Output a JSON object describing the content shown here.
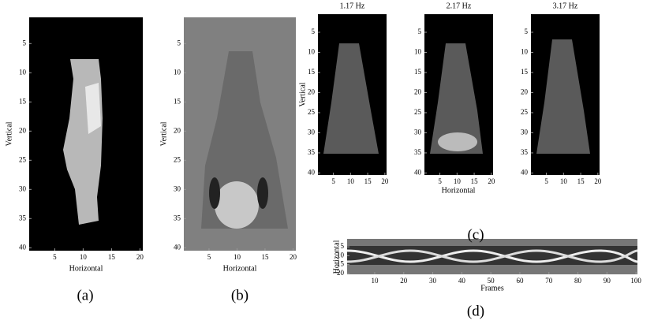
{
  "panel_a": {
    "caption": "(a)",
    "x_label": "Horizontal",
    "y_label": "Vertical",
    "xticks": [
      5,
      10,
      15,
      20
    ],
    "yticks": [
      5,
      10,
      15,
      20,
      25,
      30,
      35,
      40
    ]
  },
  "panel_b": {
    "caption": "(b)",
    "x_label": "Horizontal",
    "y_label": "Vertical",
    "xticks": [
      5,
      10,
      15,
      20
    ],
    "yticks": [
      5,
      10,
      15,
      20,
      25,
      30,
      35,
      40
    ]
  },
  "panel_c": {
    "caption": "(c)",
    "x_label": "Horizontal",
    "y_label": "Vertical",
    "subplots": [
      {
        "title": "1.17 Hz"
      },
      {
        "title": "2.17 Hz"
      },
      {
        "title": "3.17 Hz"
      }
    ],
    "xticks": [
      5,
      10,
      15,
      20
    ],
    "yticks": [
      5,
      10,
      15,
      20,
      25,
      30,
      35,
      40
    ]
  },
  "panel_d": {
    "caption": "(d)",
    "x_label": "Frames",
    "y_label": "Horizontal",
    "xticks": [
      10,
      20,
      30,
      40,
      50,
      60,
      70,
      80,
      90,
      100
    ],
    "yticks": [
      5,
      10,
      15,
      20
    ]
  }
}
